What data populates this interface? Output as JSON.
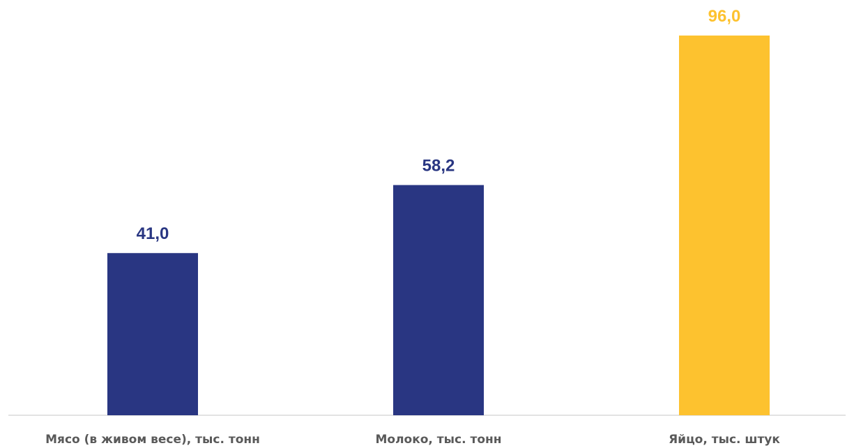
{
  "chart_data": {
    "type": "bar",
    "title": "",
    "xlabel": "",
    "ylabel": "",
    "categories": [
      "Мясо (в живом весе), тыс. тонн",
      "Молоко, тыс. тонн",
      "Яйцо, тыс. штук"
    ],
    "values": [
      41.0,
      58.2,
      96.0
    ],
    "value_labels": [
      "41,0",
      "58,2",
      "96,0"
    ],
    "colors": [
      "#293682",
      "#293682",
      "#FDC22F"
    ],
    "label_colors": [
      "#293682",
      "#293682",
      "#FDC22F"
    ],
    "ylim": [
      0,
      96
    ],
    "grid": false,
    "legend": "none"
  }
}
